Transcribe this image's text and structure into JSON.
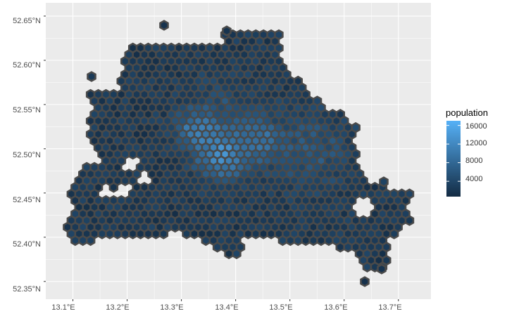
{
  "chart_data": {
    "type": "map",
    "title": "",
    "xlabel": "",
    "ylabel": "",
    "geometry": "hexagonal grid cells",
    "x_ticks": [
      "13.1°E",
      "13.2°E",
      "13.3°E",
      "13.4°E",
      "13.5°E",
      "13.6°E",
      "13.7°E"
    ],
    "y_ticks": [
      "52.35°N",
      "52.40°N",
      "52.45°N",
      "52.50°N",
      "52.55°N",
      "52.60°N",
      "52.65°N"
    ],
    "xlim": [
      13.05,
      13.76
    ],
    "ylim": [
      52.33,
      52.665
    ],
    "grid": true,
    "legend": {
      "title": "population",
      "position": "right",
      "breaks": [
        "16000",
        "12000",
        "8000",
        "4000"
      ],
      "break_values": [
        16000,
        12000,
        8000,
        4000
      ],
      "min": 700,
      "max": 17000,
      "low_color": "#132b43",
      "high_color": "#56b1f7"
    },
    "colors": {
      "panel_bg": "#ebebeb",
      "grid_major": "#ffffff",
      "cell_border": "#4a4a4a"
    }
  }
}
